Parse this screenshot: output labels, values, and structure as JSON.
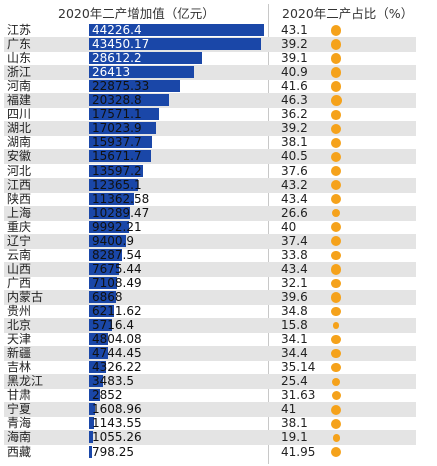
{
  "chart_data": {
    "type": "bar",
    "title_value_column": "2020年二产增加值（亿元）",
    "title_share_column": "2020年二产占比（%）",
    "colors": {
      "bar": "#1a47a8",
      "dot": "#f5a21b",
      "stripe": "#e4e4e4"
    },
    "rows": [
      {
        "province": "江苏",
        "value": 44226.4,
        "value_label": "44226.4",
        "share": 43.1,
        "share_label": "43.1"
      },
      {
        "province": "广东",
        "value": 43450.17,
        "value_label": "43450.17",
        "share": 39.2,
        "share_label": "39.2"
      },
      {
        "province": "山东",
        "value": 28612.2,
        "value_label": "28612.2",
        "share": 39.1,
        "share_label": "39.1"
      },
      {
        "province": "浙江",
        "value": 26413,
        "value_label": "26413",
        "share": 40.9,
        "share_label": "40.9"
      },
      {
        "province": "河南",
        "value": 22875.33,
        "value_label": "22875.33",
        "share": 41.6,
        "share_label": "41.6"
      },
      {
        "province": "福建",
        "value": 20328.8,
        "value_label": "20328.8",
        "share": 46.3,
        "share_label": "46.3"
      },
      {
        "province": "四川",
        "value": 17571.1,
        "value_label": "17571.1",
        "share": 36.2,
        "share_label": "36.2"
      },
      {
        "province": "湖北",
        "value": 17023.9,
        "value_label": "17023.9",
        "share": 39.2,
        "share_label": "39.2"
      },
      {
        "province": "湖南",
        "value": 15937.7,
        "value_label": "15937.7",
        "share": 38.1,
        "share_label": "38.1"
      },
      {
        "province": "安徽",
        "value": 15671.7,
        "value_label": "15671.7",
        "share": 40.5,
        "share_label": "40.5"
      },
      {
        "province": "河北",
        "value": 13597.2,
        "value_label": "13597.2",
        "share": 37.6,
        "share_label": "37.6"
      },
      {
        "province": "江西",
        "value": 12365.1,
        "value_label": "12365.1",
        "share": 43.2,
        "share_label": "43.2"
      },
      {
        "province": "陕西",
        "value": 11362.58,
        "value_label": "11362.58",
        "share": 43.4,
        "share_label": "43.4"
      },
      {
        "province": "上海",
        "value": 10289.47,
        "value_label": "10289.47",
        "share": 26.6,
        "share_label": "26.6"
      },
      {
        "province": "重庆",
        "value": 9992.21,
        "value_label": "9992.21",
        "share": 40,
        "share_label": "40"
      },
      {
        "province": "辽宁",
        "value": 9400.9,
        "value_label": "9400.9",
        "share": 37.4,
        "share_label": "37.4"
      },
      {
        "province": "云南",
        "value": 8287.54,
        "value_label": "8287.54",
        "share": 33.8,
        "share_label": "33.8"
      },
      {
        "province": "山西",
        "value": 7675.44,
        "value_label": "7675.44",
        "share": 43.4,
        "share_label": "43.4"
      },
      {
        "province": "广西",
        "value": 7108.49,
        "value_label": "7108.49",
        "share": 32.1,
        "share_label": "32.1"
      },
      {
        "province": "内蒙古",
        "value": 6868,
        "value_label": "6868",
        "share": 39.6,
        "share_label": "39.6"
      },
      {
        "province": "贵州",
        "value": 6211.62,
        "value_label": "6211.62",
        "share": 34.8,
        "share_label": "34.8"
      },
      {
        "province": "北京",
        "value": 5716.4,
        "value_label": "5716.4",
        "share": 15.8,
        "share_label": "15.8"
      },
      {
        "province": "天津",
        "value": 4804.08,
        "value_label": "4804.08",
        "share": 34.1,
        "share_label": "34.1"
      },
      {
        "province": "新疆",
        "value": 4744.45,
        "value_label": "4744.45",
        "share": 34.4,
        "share_label": "34.4"
      },
      {
        "province": "吉林",
        "value": 4326.22,
        "value_label": "4326.22",
        "share": 35.14,
        "share_label": "35.14"
      },
      {
        "province": "黑龙江",
        "value": 3483.5,
        "value_label": "3483.5",
        "share": 25.4,
        "share_label": "25.4"
      },
      {
        "province": "甘肃",
        "value": 2852,
        "value_label": "2852",
        "share": 31.63,
        "share_label": "31.63"
      },
      {
        "province": "宁夏",
        "value": 1608.96,
        "value_label": "1608.96",
        "share": 41,
        "share_label": "41"
      },
      {
        "province": "青海",
        "value": 1143.55,
        "value_label": "1143.55",
        "share": 38.1,
        "share_label": "38.1"
      },
      {
        "province": "海南",
        "value": 1055.26,
        "value_label": "1055.26",
        "share": 19.1,
        "share_label": "19.1"
      },
      {
        "province": "西藏",
        "value": 798.25,
        "value_label": "798.25",
        "share": 41.95,
        "share_label": "41.95"
      }
    ],
    "xlim": [
      0,
      44226.4
    ]
  }
}
